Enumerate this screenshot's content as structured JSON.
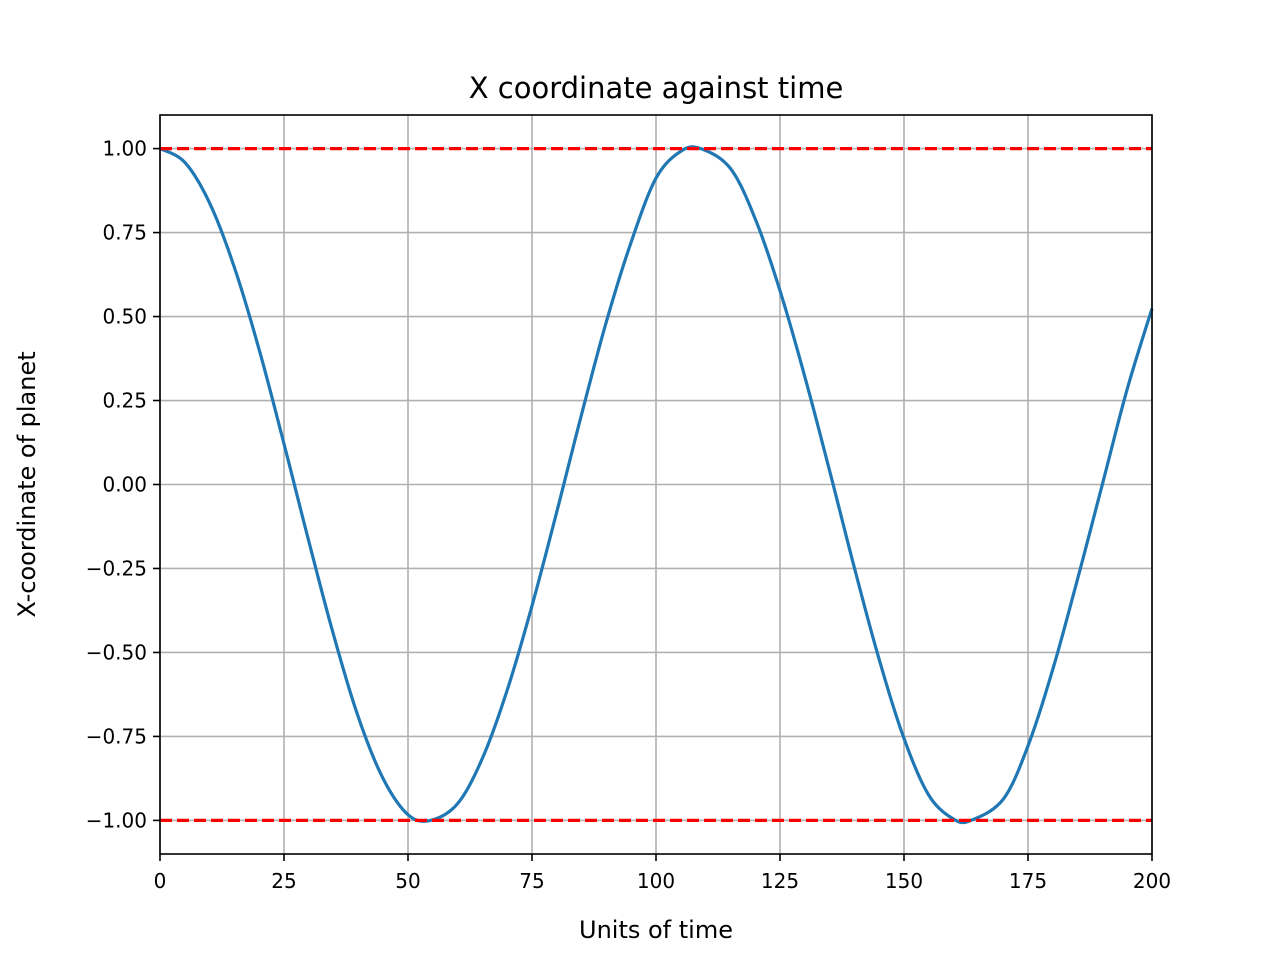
{
  "chart_data": {
    "type": "line",
    "title": "X coordinate against time",
    "xlabel": "Units of time",
    "ylabel": "X-coordinate of planet",
    "xlim": [
      0,
      200
    ],
    "ylim": [
      -1.1,
      1.1
    ],
    "xticks": [
      0,
      25,
      50,
      75,
      100,
      125,
      150,
      175,
      200
    ],
    "xtick_labels": [
      "0",
      "25",
      "50",
      "75",
      "100",
      "125",
      "150",
      "175",
      "200"
    ],
    "yticks": [
      1.0,
      0.75,
      0.5,
      0.25,
      0.0,
      -0.25,
      -0.5,
      -0.75,
      -1.0
    ],
    "ytick_labels": [
      "1.00",
      "0.75",
      "0.50",
      "0.25",
      "0.00",
      "−0.25",
      "−0.50",
      "−0.75",
      "−1.00"
    ],
    "grid": true,
    "series": [
      {
        "color": "#1f77b4",
        "style": "solid",
        "x": [
          0,
          5,
          10,
          15,
          20,
          25,
          30,
          35,
          40,
          45,
          50,
          54.5,
          60,
          65,
          70,
          75,
          80,
          85,
          90,
          95,
          100,
          105,
          109,
          115,
          120,
          125,
          130,
          135,
          140,
          145,
          150,
          155,
          160,
          163.5,
          170,
          175,
          180,
          185,
          190,
          195,
          200
        ],
        "y": [
          1.0,
          0.959,
          0.838,
          0.646,
          0.401,
          0.121,
          -0.169,
          -0.448,
          -0.693,
          -0.876,
          -0.983,
          -1.0,
          -0.95,
          -0.815,
          -0.612,
          -0.361,
          -0.081,
          0.209,
          0.485,
          0.722,
          0.912,
          0.992,
          1.0,
          0.941,
          0.791,
          0.577,
          0.321,
          0.041,
          -0.248,
          -0.521,
          -0.756,
          -0.925,
          -0.996,
          -1.0,
          -0.937,
          -0.778,
          -0.55,
          -0.281,
          0.001,
          0.284,
          0.524
        ]
      },
      {
        "color": "#ff0000",
        "style": "dashed",
        "x": [
          0,
          200
        ],
        "y": [
          1.0,
          1.0
        ]
      },
      {
        "color": "#ff0000",
        "style": "dashed",
        "x": [
          0,
          200
        ],
        "y": [
          -1.0,
          -1.0
        ]
      }
    ]
  }
}
